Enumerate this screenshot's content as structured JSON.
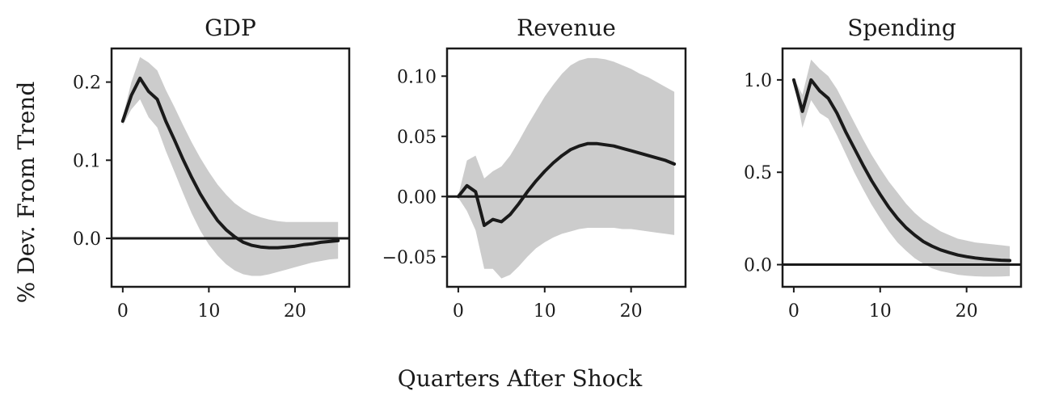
{
  "figure": {
    "ylabel": "% Dev. From Trend",
    "xlabel": "Quarters After Shock"
  },
  "chart_data": [
    {
      "type": "line",
      "title": "GDP",
      "xlim": [
        -1.3,
        26.3
      ],
      "ylim": [
        -0.062,
        0.243
      ],
      "xticks": [
        0,
        10,
        20
      ],
      "xtick_labels": [
        "0",
        "10",
        "20"
      ],
      "yticks": [
        0.0,
        0.1,
        0.2
      ],
      "ytick_labels": [
        "0.0",
        "0.1",
        "0.2"
      ],
      "zero_line": 0,
      "x": [
        0,
        1,
        2,
        3,
        4,
        5,
        6,
        7,
        8,
        9,
        10,
        11,
        12,
        13,
        14,
        15,
        16,
        17,
        18,
        19,
        20,
        21,
        22,
        23,
        24,
        25
      ],
      "y": [
        0.15,
        0.183,
        0.205,
        0.188,
        0.178,
        0.15,
        0.126,
        0.101,
        0.078,
        0.057,
        0.039,
        0.023,
        0.011,
        0.002,
        -0.005,
        -0.009,
        -0.011,
        -0.012,
        -0.012,
        -0.011,
        -0.01,
        -0.008,
        -0.007,
        -0.005,
        -0.004,
        -0.003
      ],
      "lower": [
        0.145,
        0.165,
        0.178,
        0.155,
        0.142,
        0.112,
        0.085,
        0.058,
        0.032,
        0.01,
        -0.008,
        -0.022,
        -0.033,
        -0.041,
        -0.046,
        -0.048,
        -0.048,
        -0.046,
        -0.043,
        -0.04,
        -0.037,
        -0.034,
        -0.031,
        -0.029,
        -0.027,
        -0.026
      ],
      "upper": [
        0.155,
        0.2,
        0.232,
        0.225,
        0.215,
        0.19,
        0.168,
        0.145,
        0.123,
        0.103,
        0.085,
        0.069,
        0.056,
        0.045,
        0.037,
        0.031,
        0.027,
        0.024,
        0.022,
        0.021,
        0.021,
        0.021,
        0.021,
        0.021,
        0.021,
        0.021
      ]
    },
    {
      "type": "line",
      "title": "Revenue",
      "xlim": [
        -1.3,
        26.3
      ],
      "ylim": [
        -0.075,
        0.123
      ],
      "xticks": [
        0,
        10,
        20
      ],
      "xtick_labels": [
        "0",
        "10",
        "20"
      ],
      "yticks": [
        -0.05,
        0.0,
        0.05,
        0.1
      ],
      "ytick_labels": [
        "−0.05",
        "0.00",
        "0.05",
        "0.10"
      ],
      "zero_line": 0,
      "x": [
        0,
        1,
        2,
        3,
        4,
        5,
        6,
        7,
        8,
        9,
        10,
        11,
        12,
        13,
        14,
        15,
        16,
        17,
        18,
        19,
        20,
        21,
        22,
        23,
        24,
        25
      ],
      "y": [
        0.0,
        0.009,
        0.004,
        -0.024,
        -0.019,
        -0.021,
        -0.015,
        -0.006,
        0.004,
        0.013,
        0.021,
        0.028,
        0.034,
        0.039,
        0.042,
        0.044,
        0.044,
        0.043,
        0.042,
        0.04,
        0.038,
        0.036,
        0.034,
        0.032,
        0.03,
        0.027
      ],
      "lower": [
        -0.001,
        -0.012,
        -0.028,
        -0.06,
        -0.06,
        -0.068,
        -0.065,
        -0.058,
        -0.05,
        -0.043,
        -0.038,
        -0.034,
        -0.031,
        -0.029,
        -0.027,
        -0.026,
        -0.026,
        -0.026,
        -0.026,
        -0.027,
        -0.027,
        -0.028,
        -0.029,
        -0.03,
        -0.031,
        -0.032
      ],
      "upper": [
        0.001,
        0.03,
        0.034,
        0.015,
        0.021,
        0.025,
        0.034,
        0.046,
        0.059,
        0.071,
        0.083,
        0.093,
        0.102,
        0.109,
        0.113,
        0.115,
        0.115,
        0.114,
        0.112,
        0.109,
        0.106,
        0.102,
        0.099,
        0.095,
        0.091,
        0.087
      ]
    },
    {
      "type": "line",
      "title": "Spending",
      "xlim": [
        -1.3,
        26.3
      ],
      "ylim": [
        -0.12,
        1.17
      ],
      "xticks": [
        0,
        10,
        20
      ],
      "xtick_labels": [
        "0",
        "10",
        "20"
      ],
      "yticks": [
        0.0,
        0.5,
        1.0
      ],
      "ytick_labels": [
        "0.0",
        "0.5",
        "1.0"
      ],
      "zero_line": 0,
      "x": [
        0,
        1,
        2,
        3,
        4,
        5,
        6,
        7,
        8,
        9,
        10,
        11,
        12,
        13,
        14,
        15,
        16,
        17,
        18,
        19,
        20,
        21,
        22,
        23,
        24,
        25
      ],
      "y": [
        1.0,
        0.83,
        1.0,
        0.94,
        0.9,
        0.82,
        0.72,
        0.63,
        0.54,
        0.455,
        0.38,
        0.31,
        0.25,
        0.2,
        0.16,
        0.125,
        0.1,
        0.08,
        0.065,
        0.052,
        0.043,
        0.036,
        0.031,
        0.027,
        0.024,
        0.022
      ],
      "lower": [
        0.99,
        0.74,
        0.89,
        0.82,
        0.79,
        0.7,
        0.6,
        0.5,
        0.41,
        0.325,
        0.25,
        0.18,
        0.12,
        0.075,
        0.035,
        0.005,
        -0.02,
        -0.035,
        -0.045,
        -0.055,
        -0.06,
        -0.063,
        -0.065,
        -0.065,
        -0.064,
        -0.062
      ],
      "upper": [
        1.01,
        0.92,
        1.11,
        1.06,
        1.02,
        0.95,
        0.86,
        0.77,
        0.68,
        0.595,
        0.52,
        0.45,
        0.39,
        0.33,
        0.28,
        0.24,
        0.21,
        0.18,
        0.16,
        0.14,
        0.13,
        0.12,
        0.115,
        0.11,
        0.105,
        0.1
      ]
    }
  ]
}
